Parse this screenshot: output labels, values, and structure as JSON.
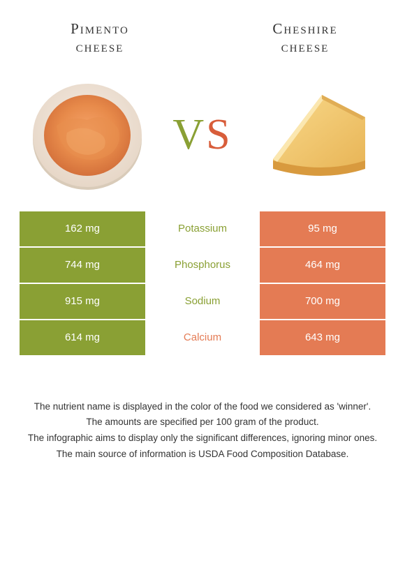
{
  "colors": {
    "left": "#8aa034",
    "right": "#e47b54",
    "left_text": "#8aa034",
    "right_text": "#e47b54",
    "white": "#ffffff",
    "footer_text": "#333333"
  },
  "left_food": {
    "name_line1": "Pimento",
    "name_line2": "cheese"
  },
  "right_food": {
    "name_line1": "Cheshire",
    "name_line2": "cheese"
  },
  "vs": {
    "v": "V",
    "s": "S"
  },
  "rows": [
    {
      "left": "162 mg",
      "label": "Potassium",
      "right": "95 mg",
      "winner": "left"
    },
    {
      "left": "744 mg",
      "label": "Phosphorus",
      "right": "464 mg",
      "winner": "left"
    },
    {
      "left": "915 mg",
      "label": "Sodium",
      "right": "700 mg",
      "winner": "left"
    },
    {
      "left": "614 mg",
      "label": "Calcium",
      "right": "643 mg",
      "winner": "right"
    }
  ],
  "footnotes": [
    "The nutrient name is displayed in the color of the food we considered as 'winner'.",
    "The amounts are specified per 100 gram of the product.",
    "The infographic aims to display only the significant differences, ignoring minor ones.",
    "The main source of information is USDA Food Composition Database."
  ],
  "typography": {
    "title_fontsize": 21,
    "vs_fontsize": 62,
    "cell_fontsize": 15,
    "footnote_fontsize": 13.5
  }
}
